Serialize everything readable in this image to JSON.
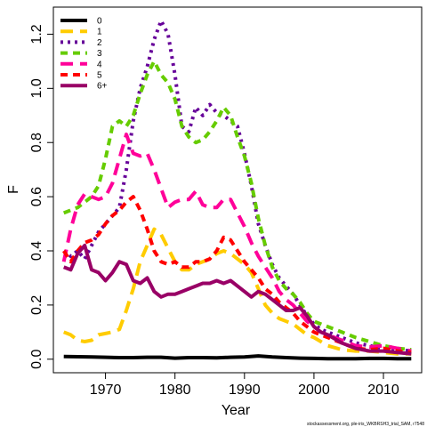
{
  "chart_data": {
    "type": "line",
    "xlabel": "Year",
    "ylabel": "F",
    "xlim": [
      1962.5,
      2015.5
    ],
    "ylim": [
      -0.05,
      1.3
    ],
    "x_ticks": [
      1970,
      1980,
      1990,
      2000,
      2010
    ],
    "y_ticks": [
      0.0,
      0.2,
      0.4,
      0.6,
      0.8,
      1.0,
      1.2
    ],
    "x_tick_labels": [
      "1970",
      "1980",
      "1990",
      "2000",
      "2010"
    ],
    "y_tick_labels": [
      "0.0",
      "0.2",
      "0.4",
      "0.6",
      "0.8",
      "1.0",
      "1.2"
    ],
    "legend_position": "top-left",
    "caption": "stockassessment.org, ple-iris_WKBRSH3_trial_SAM, r7548",
    "series": [
      {
        "name": "0",
        "color": "#000000",
        "dash": "solid",
        "points": [
          [
            1964,
            0.01
          ],
          [
            1966,
            0.009
          ],
          [
            1968,
            0.008
          ],
          [
            1970,
            0.007
          ],
          [
            1972,
            0.006
          ],
          [
            1974,
            0.006
          ],
          [
            1976,
            0.007
          ],
          [
            1978,
            0.007
          ],
          [
            1980,
            0.004
          ],
          [
            1982,
            0.006
          ],
          [
            1984,
            0.006
          ],
          [
            1986,
            0.005
          ],
          [
            1988,
            0.007
          ],
          [
            1990,
            0.008
          ],
          [
            1992,
            0.012
          ],
          [
            1994,
            0.008
          ],
          [
            1996,
            0.006
          ],
          [
            1998,
            0.004
          ],
          [
            2000,
            0.003
          ],
          [
            2002,
            0.002
          ],
          [
            2004,
            0.002
          ],
          [
            2006,
            0.002
          ],
          [
            2008,
            0.003
          ],
          [
            2010,
            0.003
          ],
          [
            2012,
            0.002
          ],
          [
            2014,
            0.002
          ]
        ]
      },
      {
        "name": "1",
        "color": "#ffcc00",
        "dash": "long",
        "points": [
          [
            1964,
            0.1
          ],
          [
            1965,
            0.09
          ],
          [
            1966,
            0.07
          ],
          [
            1967,
            0.065
          ],
          [
            1968,
            0.07
          ],
          [
            1969,
            0.09
          ],
          [
            1970,
            0.095
          ],
          [
            1971,
            0.1
          ],
          [
            1972,
            0.11
          ],
          [
            1973,
            0.18
          ],
          [
            1974,
            0.26
          ],
          [
            1975,
            0.36
          ],
          [
            1976,
            0.42
          ],
          [
            1977,
            0.48
          ],
          [
            1978,
            0.46
          ],
          [
            1979,
            0.41
          ],
          [
            1980,
            0.36
          ],
          [
            1981,
            0.33
          ],
          [
            1982,
            0.33
          ],
          [
            1983,
            0.35
          ],
          [
            1984,
            0.36
          ],
          [
            1985,
            0.37
          ],
          [
            1986,
            0.39
          ],
          [
            1987,
            0.4
          ],
          [
            1988,
            0.39
          ],
          [
            1989,
            0.37
          ],
          [
            1990,
            0.35
          ],
          [
            1991,
            0.32
          ],
          [
            1992,
            0.26
          ],
          [
            1993,
            0.2
          ],
          [
            1994,
            0.17
          ],
          [
            1995,
            0.15
          ],
          [
            1996,
            0.14
          ],
          [
            1997,
            0.13
          ],
          [
            1998,
            0.11
          ],
          [
            1999,
            0.09
          ],
          [
            2000,
            0.08
          ],
          [
            2002,
            0.05
          ],
          [
            2004,
            0.035
          ],
          [
            2006,
            0.03
          ],
          [
            2008,
            0.03
          ],
          [
            2010,
            0.025
          ],
          [
            2012,
            0.02
          ],
          [
            2014,
            0.02
          ]
        ]
      },
      {
        "name": "2",
        "color": "#660099",
        "dash": "dotted",
        "points": [
          [
            1964,
            0.4
          ],
          [
            1965,
            0.38
          ],
          [
            1966,
            0.4
          ],
          [
            1967,
            0.37
          ],
          [
            1968,
            0.42
          ],
          [
            1969,
            0.47
          ],
          [
            1970,
            0.5
          ],
          [
            1971,
            0.53
          ],
          [
            1972,
            0.56
          ],
          [
            1973,
            0.7
          ],
          [
            1974,
            0.88
          ],
          [
            1975,
            1.0
          ],
          [
            1976,
            1.08
          ],
          [
            1977,
            1.18
          ],
          [
            1978,
            1.25
          ],
          [
            1979,
            1.2
          ],
          [
            1980,
            1.05
          ],
          [
            1981,
            0.86
          ],
          [
            1982,
            0.84
          ],
          [
            1983,
            0.93
          ],
          [
            1984,
            0.9
          ],
          [
            1985,
            0.94
          ],
          [
            1986,
            0.91
          ],
          [
            1987,
            0.9
          ],
          [
            1988,
            0.88
          ],
          [
            1989,
            0.86
          ],
          [
            1990,
            0.76
          ],
          [
            1991,
            0.64
          ],
          [
            1992,
            0.5
          ],
          [
            1993,
            0.42
          ],
          [
            1994,
            0.35
          ],
          [
            1995,
            0.3
          ],
          [
            1996,
            0.27
          ],
          [
            1997,
            0.24
          ],
          [
            1998,
            0.2
          ],
          [
            1999,
            0.16
          ],
          [
            2000,
            0.13
          ],
          [
            2001,
            0.11
          ],
          [
            2002,
            0.1
          ],
          [
            2004,
            0.08
          ],
          [
            2006,
            0.06
          ],
          [
            2008,
            0.05
          ],
          [
            2010,
            0.04
          ],
          [
            2012,
            0.035
          ],
          [
            2014,
            0.03
          ]
        ]
      },
      {
        "name": "3",
        "color": "#66cc00",
        "dash": "dashed",
        "points": [
          [
            1964,
            0.54
          ],
          [
            1965,
            0.55
          ],
          [
            1966,
            0.56
          ],
          [
            1967,
            0.58
          ],
          [
            1968,
            0.6
          ],
          [
            1969,
            0.64
          ],
          [
            1970,
            0.74
          ],
          [
            1971,
            0.86
          ],
          [
            1972,
            0.88
          ],
          [
            1973,
            0.86
          ],
          [
            1974,
            0.9
          ],
          [
            1975,
            0.98
          ],
          [
            1976,
            1.05
          ],
          [
            1977,
            1.1
          ],
          [
            1978,
            1.05
          ],
          [
            1979,
            1.02
          ],
          [
            1980,
            0.96
          ],
          [
            1981,
            0.86
          ],
          [
            1982,
            0.82
          ],
          [
            1983,
            0.8
          ],
          [
            1984,
            0.81
          ],
          [
            1985,
            0.84
          ],
          [
            1986,
            0.88
          ],
          [
            1987,
            0.93
          ],
          [
            1988,
            0.9
          ],
          [
            1989,
            0.82
          ],
          [
            1990,
            0.75
          ],
          [
            1991,
            0.65
          ],
          [
            1992,
            0.52
          ],
          [
            1993,
            0.42
          ],
          [
            1994,
            0.34
          ],
          [
            1995,
            0.29
          ],
          [
            1996,
            0.26
          ],
          [
            1997,
            0.24
          ],
          [
            1998,
            0.21
          ],
          [
            1999,
            0.17
          ],
          [
            2000,
            0.14
          ],
          [
            2001,
            0.13
          ],
          [
            2002,
            0.12
          ],
          [
            2004,
            0.1
          ],
          [
            2006,
            0.08
          ],
          [
            2008,
            0.065
          ],
          [
            2010,
            0.05
          ],
          [
            2012,
            0.04
          ],
          [
            2014,
            0.035
          ]
        ]
      },
      {
        "name": "4",
        "color": "#ff0099",
        "dash": "long",
        "points": [
          [
            1964,
            0.36
          ],
          [
            1965,
            0.48
          ],
          [
            1966,
            0.57
          ],
          [
            1967,
            0.61
          ],
          [
            1968,
            0.6
          ],
          [
            1969,
            0.59
          ],
          [
            1970,
            0.6
          ],
          [
            1971,
            0.65
          ],
          [
            1972,
            0.74
          ],
          [
            1973,
            0.83
          ],
          [
            1974,
            0.76
          ],
          [
            1975,
            0.75
          ],
          [
            1976,
            0.76
          ],
          [
            1977,
            0.7
          ],
          [
            1978,
            0.63
          ],
          [
            1979,
            0.56
          ],
          [
            1980,
            0.58
          ],
          [
            1981,
            0.59
          ],
          [
            1982,
            0.59
          ],
          [
            1983,
            0.62
          ],
          [
            1984,
            0.57
          ],
          [
            1985,
            0.56
          ],
          [
            1986,
            0.56
          ],
          [
            1987,
            0.59
          ],
          [
            1988,
            0.59
          ],
          [
            1989,
            0.54
          ],
          [
            1990,
            0.49
          ],
          [
            1991,
            0.43
          ],
          [
            1992,
            0.38
          ],
          [
            1993,
            0.34
          ],
          [
            1994,
            0.3
          ],
          [
            1995,
            0.25
          ],
          [
            1996,
            0.22
          ],
          [
            1997,
            0.2
          ],
          [
            1998,
            0.17
          ],
          [
            1999,
            0.14
          ],
          [
            2000,
            0.12
          ],
          [
            2001,
            0.1
          ],
          [
            2002,
            0.09
          ],
          [
            2004,
            0.07
          ],
          [
            2006,
            0.05
          ],
          [
            2008,
            0.045
          ],
          [
            2010,
            0.05
          ],
          [
            2012,
            0.04
          ],
          [
            2014,
            0.03
          ]
        ]
      },
      {
        "name": "5",
        "color": "#ff0000",
        "dash": "dashed",
        "points": [
          [
            1964,
            0.4
          ],
          [
            1965,
            0.36
          ],
          [
            1966,
            0.4
          ],
          [
            1967,
            0.43
          ],
          [
            1968,
            0.44
          ],
          [
            1969,
            0.46
          ],
          [
            1970,
            0.5
          ],
          [
            1971,
            0.53
          ],
          [
            1972,
            0.55
          ],
          [
            1973,
            0.58
          ],
          [
            1974,
            0.6
          ],
          [
            1975,
            0.55
          ],
          [
            1976,
            0.48
          ],
          [
            1977,
            0.4
          ],
          [
            1978,
            0.36
          ],
          [
            1979,
            0.35
          ],
          [
            1980,
            0.36
          ],
          [
            1981,
            0.34
          ],
          [
            1982,
            0.34
          ],
          [
            1983,
            0.36
          ],
          [
            1984,
            0.36
          ],
          [
            1985,
            0.37
          ],
          [
            1986,
            0.4
          ],
          [
            1987,
            0.45
          ],
          [
            1988,
            0.44
          ],
          [
            1989,
            0.4
          ],
          [
            1990,
            0.36
          ],
          [
            1991,
            0.33
          ],
          [
            1992,
            0.3
          ],
          [
            1993,
            0.26
          ],
          [
            1994,
            0.24
          ],
          [
            1995,
            0.21
          ],
          [
            1996,
            0.19
          ],
          [
            1997,
            0.17
          ],
          [
            1998,
            0.14
          ],
          [
            1999,
            0.12
          ],
          [
            2000,
            0.1
          ],
          [
            2001,
            0.09
          ],
          [
            2002,
            0.08
          ],
          [
            2004,
            0.06
          ],
          [
            2006,
            0.04
          ],
          [
            2008,
            0.035
          ],
          [
            2010,
            0.04
          ],
          [
            2012,
            0.03
          ],
          [
            2014,
            0.025
          ]
        ]
      },
      {
        "name": "6+",
        "color": "#990066",
        "dash": "solid",
        "points": [
          [
            1964,
            0.34
          ],
          [
            1965,
            0.33
          ],
          [
            1966,
            0.39
          ],
          [
            1967,
            0.42
          ],
          [
            1968,
            0.33
          ],
          [
            1969,
            0.32
          ],
          [
            1970,
            0.29
          ],
          [
            1971,
            0.32
          ],
          [
            1972,
            0.36
          ],
          [
            1973,
            0.35
          ],
          [
            1974,
            0.29
          ],
          [
            1975,
            0.28
          ],
          [
            1976,
            0.3
          ],
          [
            1977,
            0.25
          ],
          [
            1978,
            0.23
          ],
          [
            1979,
            0.24
          ],
          [
            1980,
            0.24
          ],
          [
            1981,
            0.25
          ],
          [
            1982,
            0.26
          ],
          [
            1983,
            0.27
          ],
          [
            1984,
            0.28
          ],
          [
            1985,
            0.28
          ],
          [
            1986,
            0.29
          ],
          [
            1987,
            0.28
          ],
          [
            1988,
            0.29
          ],
          [
            1989,
            0.27
          ],
          [
            1990,
            0.25
          ],
          [
            1991,
            0.23
          ],
          [
            1992,
            0.25
          ],
          [
            1993,
            0.24
          ],
          [
            1994,
            0.22
          ],
          [
            1995,
            0.2
          ],
          [
            1996,
            0.18
          ],
          [
            1997,
            0.18
          ],
          [
            1998,
            0.19
          ],
          [
            1999,
            0.16
          ],
          [
            2000,
            0.12
          ],
          [
            2001,
            0.1
          ],
          [
            2002,
            0.09
          ],
          [
            2004,
            0.06
          ],
          [
            2006,
            0.04
          ],
          [
            2008,
            0.03
          ],
          [
            2010,
            0.03
          ],
          [
            2012,
            0.025
          ],
          [
            2014,
            0.02
          ]
        ]
      }
    ]
  }
}
